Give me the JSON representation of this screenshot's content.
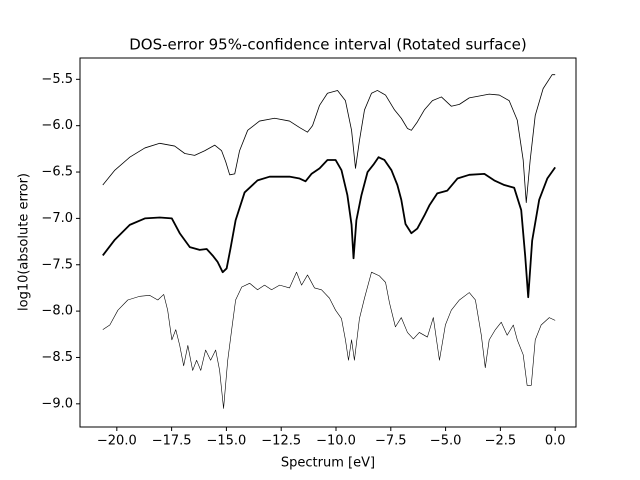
{
  "chart_data": {
    "type": "line",
    "title": "DOS-error 95%-confidence interval (Rotated surface)",
    "xlabel": "Spectrum [eV]",
    "ylabel": "log10(absolute error)",
    "xlim": [
      -21.68,
      0.95
    ],
    "ylim": [
      -9.25,
      -5.27
    ],
    "xticks": [
      {
        "value": -20,
        "label": "−20.0"
      },
      {
        "value": -17.5,
        "label": "−17.5"
      },
      {
        "value": -15,
        "label": "−15.0"
      },
      {
        "value": -12.5,
        "label": "−12.5"
      },
      {
        "value": -10,
        "label": "−10.0"
      },
      {
        "value": -7.5,
        "label": "−7.5"
      },
      {
        "value": -5,
        "label": "−5.0"
      },
      {
        "value": -2.5,
        "label": "−2.5"
      },
      {
        "value": 0,
        "label": "0.0"
      }
    ],
    "yticks": [
      {
        "value": -5.5,
        "label": "−5.5"
      },
      {
        "value": -6,
        "label": "−6.0"
      },
      {
        "value": -6.5,
        "label": "−6.5"
      },
      {
        "value": -7,
        "label": "−7.0"
      },
      {
        "value": -7.5,
        "label": "−7.5"
      },
      {
        "value": -8,
        "label": "−8.0"
      },
      {
        "value": -8.5,
        "label": "−8.5"
      },
      {
        "value": -9,
        "label": "−9.0"
      }
    ],
    "series": [
      {
        "color": "#000000",
        "width": 0.8,
        "x": [
          -20.64,
          -20.09,
          -19.41,
          -18.72,
          -18.04,
          -17.36,
          -16.9,
          -16.45,
          -15.99,
          -15.53,
          -15.22,
          -15.03,
          -14.85,
          -14.62,
          -14.4,
          -14.03,
          -13.49,
          -12.8,
          -12.12,
          -11.66,
          -11.3,
          -11.07,
          -10.75,
          -10.39,
          -9.93,
          -9.57,
          -9.29,
          -9.11,
          -8.93,
          -8.7,
          -8.38,
          -8.11,
          -7.74,
          -7.33,
          -7.02,
          -6.74,
          -6.56,
          -6.29,
          -5.97,
          -5.6,
          -5.19,
          -4.74,
          -4.37,
          -3.92,
          -3.46,
          -3.01,
          -2.55,
          -2.1,
          -1.73,
          -1.46,
          -1.32,
          -1.14,
          -0.91,
          -0.55,
          -0.14,
          0
        ],
        "values": [
          -6.64,
          -6.48,
          -6.34,
          -6.24,
          -6.19,
          -6.22,
          -6.3,
          -6.32,
          -6.27,
          -6.21,
          -6.27,
          -6.39,
          -6.53,
          -6.52,
          -6.27,
          -6.05,
          -5.95,
          -5.92,
          -5.95,
          -6.02,
          -6.07,
          -6.0,
          -5.78,
          -5.65,
          -5.62,
          -5.73,
          -6.05,
          -6.46,
          -6.16,
          -5.83,
          -5.65,
          -5.62,
          -5.67,
          -5.83,
          -5.92,
          -6.03,
          -6.05,
          -5.96,
          -5.83,
          -5.73,
          -5.69,
          -5.79,
          -5.77,
          -5.7,
          -5.68,
          -5.66,
          -5.67,
          -5.73,
          -5.94,
          -6.37,
          -6.83,
          -6.37,
          -5.89,
          -5.6,
          -5.45,
          -5.45
        ]
      },
      {
        "color": "#000000",
        "width": 1.8,
        "x": [
          -20.64,
          -20.09,
          -19.41,
          -18.72,
          -18.04,
          -17.49,
          -17.13,
          -16.67,
          -16.22,
          -15.9,
          -15.63,
          -15.4,
          -15.17,
          -14.99,
          -14.81,
          -14.58,
          -14.17,
          -13.58,
          -13.03,
          -12.12,
          -11.66,
          -11.39,
          -11.12,
          -10.75,
          -10.39,
          -10.02,
          -9.75,
          -9.48,
          -9.29,
          -9.2,
          -9.07,
          -8.84,
          -8.56,
          -8.29,
          -8.06,
          -7.79,
          -7.47,
          -7.2,
          -7.02,
          -6.83,
          -6.56,
          -6.29,
          -5.97,
          -5.74,
          -5.38,
          -4.92,
          -4.46,
          -3.92,
          -3.23,
          -2.78,
          -2.32,
          -1.87,
          -1.55,
          -1.37,
          -1.23,
          -1.05,
          -0.73,
          -0.36,
          0
        ],
        "values": [
          -7.4,
          -7.23,
          -7.07,
          -7.0,
          -6.99,
          -7.0,
          -7.16,
          -7.31,
          -7.34,
          -7.33,
          -7.4,
          -7.47,
          -7.58,
          -7.54,
          -7.32,
          -7.02,
          -6.72,
          -6.59,
          -6.55,
          -6.55,
          -6.57,
          -6.6,
          -6.52,
          -6.46,
          -6.37,
          -6.37,
          -6.48,
          -6.75,
          -7.07,
          -7.43,
          -7.02,
          -6.75,
          -6.5,
          -6.42,
          -6.34,
          -6.37,
          -6.48,
          -6.64,
          -6.8,
          -7.06,
          -7.16,
          -7.11,
          -6.97,
          -6.86,
          -6.73,
          -6.7,
          -6.57,
          -6.53,
          -6.52,
          -6.59,
          -6.64,
          -6.67,
          -6.91,
          -7.4,
          -7.85,
          -7.24,
          -6.8,
          -6.57,
          -6.45
        ]
      },
      {
        "color": "#000000",
        "width": 0.6,
        "x": [
          -20.64,
          -20.32,
          -19.95,
          -19.5,
          -18.95,
          -18.5,
          -18.13,
          -17.86,
          -17.68,
          -17.49,
          -17.31,
          -17.13,
          -16.95,
          -16.76,
          -16.54,
          -16.36,
          -16.17,
          -15.95,
          -15.72,
          -15.49,
          -15.31,
          -15.13,
          -14.94,
          -14.76,
          -14.58,
          -14.3,
          -13.94,
          -13.58,
          -13.26,
          -12.94,
          -12.57,
          -12.12,
          -11.8,
          -11.57,
          -11.3,
          -10.98,
          -10.66,
          -10.3,
          -10.02,
          -9.75,
          -9.57,
          -9.43,
          -9.29,
          -9.16,
          -8.93,
          -8.7,
          -8.38,
          -8.02,
          -7.74,
          -7.56,
          -7.29,
          -7.02,
          -6.74,
          -6.47,
          -6.2,
          -5.83,
          -5.56,
          -5.28,
          -5.01,
          -4.74,
          -4.37,
          -3.92,
          -3.64,
          -3.37,
          -3.19,
          -3.01,
          -2.73,
          -2.46,
          -2.19,
          -1.91,
          -1.73,
          -1.46,
          -1.28,
          -1.09,
          -0.91,
          -0.64,
          -0.27,
          0
        ],
        "values": [
          -8.2,
          -8.15,
          -7.99,
          -7.88,
          -7.84,
          -7.83,
          -7.88,
          -7.82,
          -7.99,
          -8.31,
          -8.2,
          -8.37,
          -8.59,
          -8.37,
          -8.64,
          -8.53,
          -8.64,
          -8.42,
          -8.53,
          -8.42,
          -8.64,
          -9.05,
          -8.53,
          -8.2,
          -7.88,
          -7.74,
          -7.7,
          -7.77,
          -7.72,
          -7.77,
          -7.72,
          -7.75,
          -7.58,
          -7.72,
          -7.61,
          -7.75,
          -7.77,
          -7.86,
          -7.99,
          -8.08,
          -8.31,
          -8.53,
          -8.31,
          -8.53,
          -8.08,
          -7.86,
          -7.58,
          -7.62,
          -7.69,
          -7.91,
          -8.17,
          -8.07,
          -8.23,
          -8.3,
          -8.23,
          -8.28,
          -8.07,
          -8.53,
          -8.15,
          -7.99,
          -7.88,
          -7.8,
          -7.88,
          -8.26,
          -8.61,
          -8.31,
          -8.2,
          -8.12,
          -8.26,
          -8.15,
          -8.31,
          -8.47,
          -8.8,
          -8.8,
          -8.31,
          -8.15,
          -8.07,
          -8.1
        ]
      }
    ]
  }
}
